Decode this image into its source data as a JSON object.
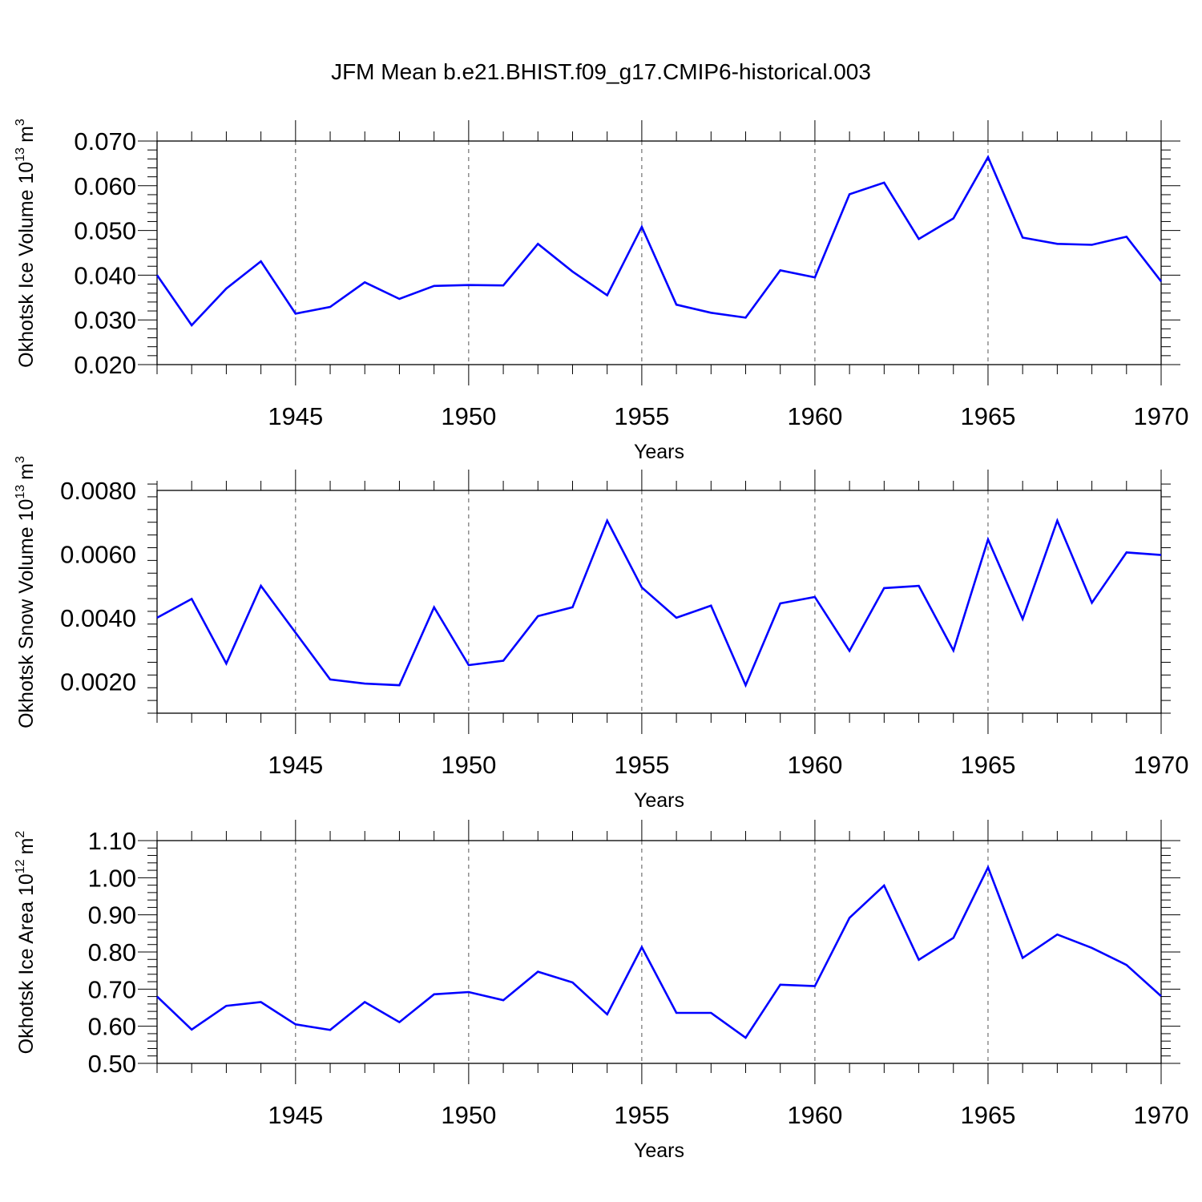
{
  "title": "JFM Mean b.e21.BHIST.f09_g17.CMIP6-historical.003",
  "colors": {
    "line": "#0000ff",
    "axis": "#000000",
    "grid": "#555555"
  },
  "chart_data": [
    {
      "type": "line",
      "ylabel_main": "Okhotsk Ice Volume 10",
      "ylabel_exp": "13",
      "ylabel_unit": "m",
      "ylabel_unit_exp": "3",
      "xlabel": "Years",
      "xlim": [
        1941,
        1970
      ],
      "ylim": [
        0.02,
        0.07
      ],
      "yticks": [
        0.02,
        0.03,
        0.04,
        0.05,
        0.06,
        0.07
      ],
      "ytick_labels": [
        "0.020",
        "0.030",
        "0.040",
        "0.050",
        "0.060",
        "0.070"
      ],
      "xticks": [
        1945,
        1950,
        1955,
        1960,
        1965,
        1970
      ],
      "xtick_labels": [
        "1945",
        "1950",
        "1955",
        "1960",
        "1965",
        "1970"
      ],
      "series": [
        {
          "name": "Okhotsk Ice Volume",
          "x": [
            1941,
            1942,
            1943,
            1944,
            1945,
            1946,
            1947,
            1948,
            1949,
            1950,
            1951,
            1952,
            1953,
            1954,
            1955,
            1956,
            1957,
            1958,
            1959,
            1960,
            1961,
            1962,
            1963,
            1964,
            1965,
            1966,
            1967,
            1968,
            1969,
            1970
          ],
          "values": [
            0.04,
            0.0288,
            0.037,
            0.0431,
            0.0314,
            0.0329,
            0.0384,
            0.0347,
            0.0376,
            0.0378,
            0.0377,
            0.047,
            0.0408,
            0.0355,
            0.0508,
            0.0334,
            0.0316,
            0.0305,
            0.0411,
            0.0395,
            0.0581,
            0.0607,
            0.0481,
            0.0527,
            0.0664,
            0.0484,
            0.047,
            0.0468,
            0.0486,
            0.0386
          ]
        }
      ]
    },
    {
      "type": "line",
      "ylabel_main": "Okhotsk Snow Volume 10",
      "ylabel_exp": "13",
      "ylabel_unit": "m",
      "ylabel_unit_exp": "3",
      "xlabel": "Years",
      "xlim": [
        1941,
        1970
      ],
      "ylim": [
        0.001,
        0.008
      ],
      "yticks": [
        0.002,
        0.004,
        0.006,
        0.008
      ],
      "ytick_labels": [
        "0.0020",
        "0.0040",
        "0.0060",
        "0.0080"
      ],
      "xticks": [
        1945,
        1950,
        1955,
        1960,
        1965,
        1970
      ],
      "xtick_labels": [
        "1945",
        "1950",
        "1955",
        "1960",
        "1965",
        "1970"
      ],
      "series": [
        {
          "name": "Okhotsk Snow Volume",
          "x": [
            1941,
            1942,
            1943,
            1944,
            1945,
            1946,
            1947,
            1948,
            1949,
            1950,
            1951,
            1952,
            1953,
            1954,
            1955,
            1956,
            1957,
            1958,
            1959,
            1960,
            1961,
            1962,
            1963,
            1964,
            1965,
            1966,
            1967,
            1968,
            1969,
            1970
          ],
          "values": [
            0.004,
            0.00459,
            0.00256,
            0.005,
            0.00353,
            0.00206,
            0.00193,
            0.00188,
            0.00433,
            0.00251,
            0.00265,
            0.00405,
            0.00433,
            0.00705,
            0.00495,
            0.004,
            0.00438,
            0.00188,
            0.00445,
            0.00465,
            0.00296,
            0.00493,
            0.005,
            0.00297,
            0.00646,
            0.00396,
            0.00705,
            0.00447,
            0.00605,
            0.00597
          ]
        }
      ]
    },
    {
      "type": "line",
      "ylabel_main": "Okhotsk Ice Area 10",
      "ylabel_exp": "12",
      "ylabel_unit": "m",
      "ylabel_unit_exp": "2",
      "xlabel": "Years",
      "xlim": [
        1941,
        1970
      ],
      "ylim": [
        0.5,
        1.1
      ],
      "yticks": [
        0.5,
        0.6,
        0.7,
        0.8,
        0.9,
        1.0,
        1.1
      ],
      "ytick_labels": [
        "0.50",
        "0.60",
        "0.70",
        "0.80",
        "0.90",
        "1.00",
        "1.10"
      ],
      "xticks": [
        1945,
        1950,
        1955,
        1960,
        1965,
        1970
      ],
      "xtick_labels": [
        "1945",
        "1950",
        "1955",
        "1960",
        "1965",
        "1970"
      ],
      "series": [
        {
          "name": "Okhotsk Ice Area",
          "x": [
            1941,
            1942,
            1943,
            1944,
            1945,
            1946,
            1947,
            1948,
            1949,
            1950,
            1951,
            1952,
            1953,
            1954,
            1955,
            1956,
            1957,
            1958,
            1959,
            1960,
            1961,
            1962,
            1963,
            1964,
            1965,
            1966,
            1967,
            1968,
            1969,
            1970
          ],
          "values": [
            0.68,
            0.591,
            0.655,
            0.665,
            0.605,
            0.59,
            0.665,
            0.611,
            0.686,
            0.692,
            0.67,
            0.747,
            0.718,
            0.632,
            0.813,
            0.636,
            0.636,
            0.569,
            0.712,
            0.708,
            0.892,
            0.979,
            0.779,
            0.838,
            1.028,
            0.784,
            0.847,
            0.811,
            0.765,
            0.681
          ]
        }
      ]
    }
  ]
}
